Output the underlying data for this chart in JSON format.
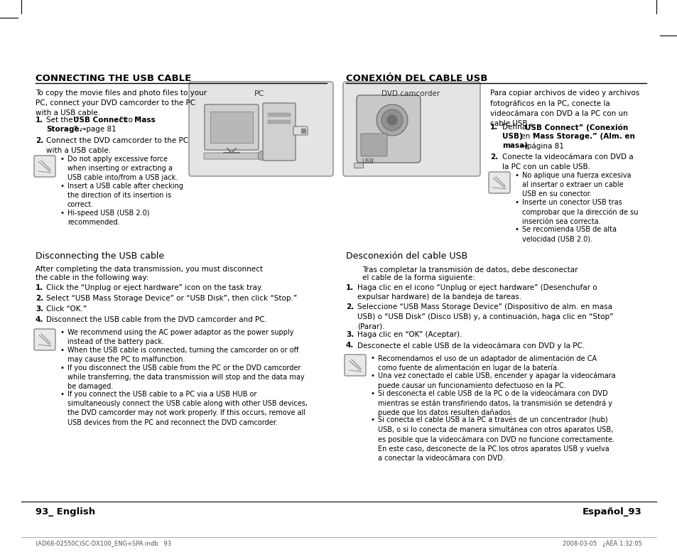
{
  "bg_color": "#ffffff",
  "page_width": 9.54,
  "page_height": 7.84,
  "left_title": "CONNECTING THE USB CABLE",
  "right_title": "CONEXIÓN DEL CABLE USB",
  "left_intro": "To copy the movie files and photo files to your\nPC, connect your DVD camcorder to the PC\nwith a USB cable.",
  "left_step1_a": "Set the “",
  "left_step1_b": "USB Connect",
  "left_step1_c": "” to “",
  "left_step1_d": "Mass",
  "left_step1_e": "\nStorage.",
  "left_step1_f": "” →page 81",
  "left_step2": "Connect the DVD camcorder to the PC\nwith a USB cable.",
  "left_bullets": [
    "Do not apply excessive force\nwhen inserting or extracting a\nUSB cable into/from a USB jack.",
    "Insert a USB cable after checking\nthe direction of its insertion is\ncorrect.",
    "Hi-speed USB (USB 2.0)\nrecommended."
  ],
  "right_intro": "Para copiar archivos de video y archivos\nfotográficos en la PC, conecte la\nvideocámara con DVD a la PC con un\ncable USB.",
  "right_step1_pre": "Defina “",
  "right_step1_bold1": "USB Connect” (Conexión",
  "right_step1_bold2": "USB)",
  "right_step1_mid": " en “",
  "right_step1_bold3": "Mass Storage.” (Alm. en",
  "right_step1_bold4": "masa)",
  "right_step1_post": " →página 81",
  "right_step2": "Conecte la videocámara con DVD a\nla PC con un cable USB.",
  "right_bullets": [
    "No aplique una fuerza excesiva\nal insertar o extraer un cable\nUSB en su conector.",
    "Inserte un conector USB tras\ncomprobar que la dirección de su\ninserción sea correcta.",
    "Se recomienda USB de alta\nvelocidad (USB 2.0)."
  ],
  "disc_title_en": "Disconnecting the USB cable",
  "disc_intro_en": "After completing the data transmission, you must disconnect\nthe cable in the following way:",
  "disc_steps_en": [
    "Click the “Unplug or eject hardware” icon on the task tray.",
    "Select “USB Mass Storage Device” or “USB Disk”, then click “Stop.”",
    "Click “OK.”",
    "Disconnect the USB cable from the DVD camcorder and PC."
  ],
  "disc_bullets_en": [
    "We recommend using the AC power adaptor as the power supply\ninstead of the battery pack.",
    "When the USB cable is connected, turning the camcorder on or off\nmay cause the PC to malfunction.",
    "If you disconnect the USB cable from the PC or the DVD camcorder\nwhile transferring, the data transmission will stop and the data may\nbe damaged.",
    "If you connect the USB cable to a PC via a USB HUB or\nsimultaneously connect the USB cable along with other USB devices,\nthe DVD camcorder may not work properly. If this occurs, remove all\nUSB devices from the PC and reconnect the DVD camcorder."
  ],
  "disc_title_es": "Desconexión del cable USB",
  "disc_intro_es": "    Tras completar la transmisión de datos, debe desconectar\n    el cable de la forma siguiente:",
  "disc_steps_es": [
    "Haga clic en el icono “Unplug or eject hardware” (Desenchufar o\nexpulsar hardware) de la bandeja de tareas.",
    "Seleccione “USB Mass Storage Device” (Dispositivo de alm. en masa\nUSB) o “USB Disk” (Disco USB) y, a continuación, haga clic en “Stop”\n(Parar).",
    "Haga clic en “OK” (Aceptar).",
    "Desconecte el cable USB de la videocámara con DVD y la PC."
  ],
  "disc_bullets_es": [
    "Recomendamos el uso de un adaptador de alimentación de CA\ncomo fuente de alimentación en lugar de la batería.",
    "Una vez conectado el cable USB, encender y apagar la videocámara\npuede causar un funcionamiento defectuoso en la PC.",
    "Si desconecta el cable USB de la PC o de la videocámara con DVD\nmientras se están transfiriendo datos, la transmisión se detendrá y\npuede que los datos resulten dañados.",
    "Si conecta el cable USB a la PC a través de un concentrador (hub)\nUSB, o si lo conecta de manera simultánea con otros aparatos USB,\nes posible que la videocámara con DVD no funcione correctamente.\nEn este caso, desconecte de la PC los otros aparatos USB y vuelva\na conectar la videocámara con DVD."
  ],
  "footer_left": "93_ English",
  "footer_right": "Español_93",
  "footer_line": "(AD68-02550C)SC-DX100_ENG+SPA.indb   93",
  "footer_date": "2008-03-05   ¿ÀÈÄ 1:32:05",
  "text_color": "#000000",
  "gray_text": "#333333",
  "light_gray": "#bbbbbb",
  "box_bg": "#e0e0e0",
  "divider_color": "#aaaaaa",
  "note_box_bg": "#e8e8e8",
  "note_box_edge": "#888888"
}
